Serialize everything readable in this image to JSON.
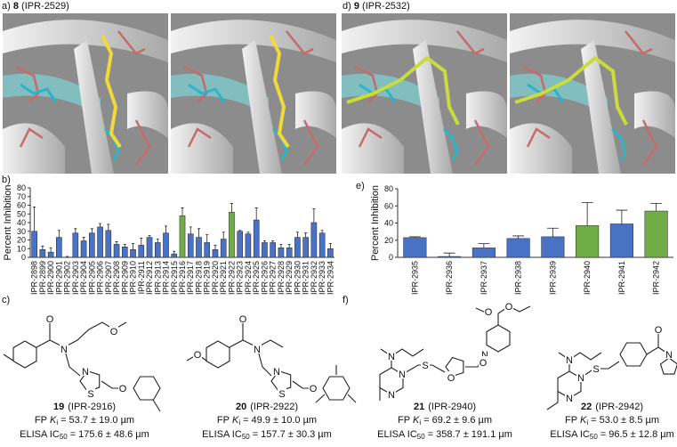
{
  "panels": {
    "a": {
      "label": "a)",
      "number": "8",
      "id": "(IPR-2529)"
    },
    "d": {
      "label": "d)",
      "number": "9",
      "id": "(IPR-2532)"
    },
    "c": {
      "label": "c)"
    },
    "f": {
      "label": "f)"
    }
  },
  "chart_data": [
    {
      "type": "bar",
      "label": "b)",
      "ylabel": "Percent Inhibition",
      "categories": [
        "IPR-2898",
        "IPR-2899",
        "IPR-2900",
        "IPR-2901",
        "IPR-2902",
        "IPR-2903",
        "IPR-2904",
        "IPR-2905",
        "IPR-2906",
        "IPR-2907",
        "IPR-2908",
        "IPR-2909",
        "IPR-2910",
        "IPR-2911",
        "IPR-2912",
        "IPR-2913",
        "IPR-2914",
        "IPR-2915",
        "IPR-2916",
        "IPR-2917",
        "IPR-2918",
        "IPR-2919",
        "IPR-2920",
        "IPR-2921",
        "IPR-2922",
        "IPR-2923",
        "IPR-2924",
        "IPR-2925",
        "IPR-2926",
        "IPR-2927",
        "IPR-2928",
        "IPR-2929",
        "IPR-2930",
        "IPR-2931",
        "IPR-2932",
        "IPR-2933",
        "IPR-2934"
      ],
      "values": [
        30,
        9,
        6,
        23,
        0,
        28,
        19,
        28,
        35,
        31,
        15,
        12,
        9,
        14,
        23,
        17,
        28,
        4,
        48,
        27,
        23,
        17,
        9,
        21,
        52,
        30,
        27,
        43,
        17,
        17,
        11,
        11,
        23,
        23,
        40,
        28,
        10
      ],
      "errors": [
        28,
        4,
        5,
        8,
        1,
        5,
        4,
        5,
        4,
        7,
        3,
        3,
        7,
        8,
        2,
        4,
        8,
        3,
        9,
        8,
        10,
        9,
        5,
        8,
        10,
        1,
        2,
        14,
        2,
        2,
        4,
        4,
        6,
        5,
        16,
        3,
        6
      ],
      "colors": [
        "#4a72c4",
        "#4a72c4",
        "#4a72c4",
        "#4a72c4",
        "#4a72c4",
        "#4a72c4",
        "#4a72c4",
        "#4a72c4",
        "#4a72c4",
        "#4a72c4",
        "#4a72c4",
        "#4a72c4",
        "#4a72c4",
        "#4a72c4",
        "#4a72c4",
        "#4a72c4",
        "#4a72c4",
        "#4a72c4",
        "#70ad47",
        "#4a72c4",
        "#4a72c4",
        "#4a72c4",
        "#4a72c4",
        "#4a72c4",
        "#70ad47",
        "#4a72c4",
        "#4a72c4",
        "#4a72c4",
        "#4a72c4",
        "#4a72c4",
        "#4a72c4",
        "#4a72c4",
        "#4a72c4",
        "#4a72c4",
        "#4a72c4",
        "#4a72c4",
        "#4a72c4"
      ],
      "ylim": [
        0,
        80
      ],
      "yticks": [
        0,
        10,
        20,
        30,
        40,
        50,
        60,
        70,
        80
      ]
    },
    {
      "type": "bar",
      "label": "e)",
      "ylabel": "Percent Inhibition",
      "categories": [
        "IPR-2935",
        "IPR-2936",
        "IPR-2937",
        "IPR-2938",
        "IPR-2939",
        "IPR-2940",
        "IPR-2941",
        "IPR-2942"
      ],
      "values": [
        23,
        1,
        11,
        22,
        24,
        37,
        39,
        54
      ],
      "errors": [
        1,
        4,
        5,
        3,
        10,
        27,
        16,
        9
      ],
      "colors": [
        "#4a72c4",
        "#4a72c4",
        "#4a72c4",
        "#4a72c4",
        "#4a72c4",
        "#70ad47",
        "#4a72c4",
        "#70ad47"
      ],
      "ylim": [
        0,
        80
      ],
      "yticks": [
        0,
        20,
        40,
        60,
        80
      ]
    }
  ],
  "caption_terms": {
    "fp": "FP",
    "k": "K",
    "i": "i",
    "eq": "=",
    "elisa": "ELISA IC",
    "sub50": "50"
  },
  "compounds": [
    {
      "number": "19",
      "id": "(IPR-2916)",
      "fp": "53.7 ± 19.0 µm",
      "elisa": "175.6 ± 48.6 µm",
      "atoms": [
        "O",
        "N",
        "O",
        "N",
        "S",
        "O"
      ]
    },
    {
      "number": "20",
      "id": "(IPR-2922)",
      "fp": "49.9 ± 10.0 µm",
      "elisa": "157.7 ± 30.3 µm",
      "atoms": [
        "O",
        "O",
        "N",
        "N",
        "S",
        "O"
      ]
    },
    {
      "number": "21",
      "id": "(IPR-2940)",
      "fp": "69.2 ± 9.6 µm",
      "elisa": "358.7 ± 191.1 µm",
      "atoms": [
        "N",
        "N",
        "N",
        "S",
        "O",
        "N",
        "O",
        "O",
        "O"
      ]
    },
    {
      "number": "22",
      "id": "(IPR-2942)",
      "fp": "53.0 ± 8.5 µm",
      "elisa": "96.5 ± 12.8 µm",
      "atoms": [
        "N",
        "N",
        "N",
        "S",
        "O",
        "N"
      ]
    }
  ]
}
